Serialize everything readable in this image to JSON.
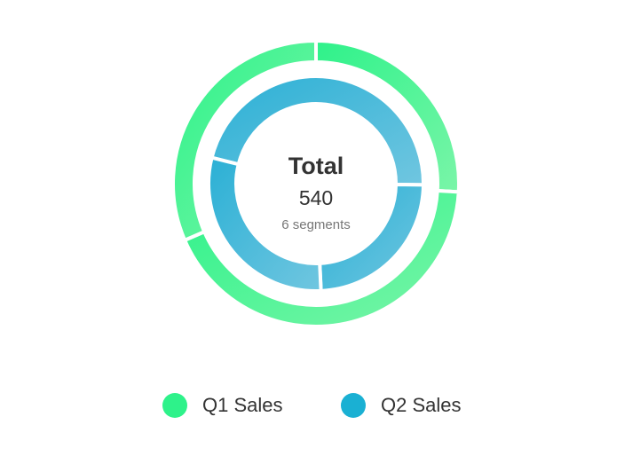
{
  "chart_data": {
    "type": "nested-donut",
    "center_label": "Total",
    "center_value": 540,
    "center_note": "6 segments",
    "series": [
      {
        "name": "Q1 Sales",
        "color": "#2ef28a",
        "values": [
          70,
          115,
          85
        ]
      },
      {
        "name": "Q2 Sales",
        "color": "#1ab0d3",
        "values": [
          125,
          65,
          80
        ]
      }
    ],
    "legend": "bottom"
  }
}
